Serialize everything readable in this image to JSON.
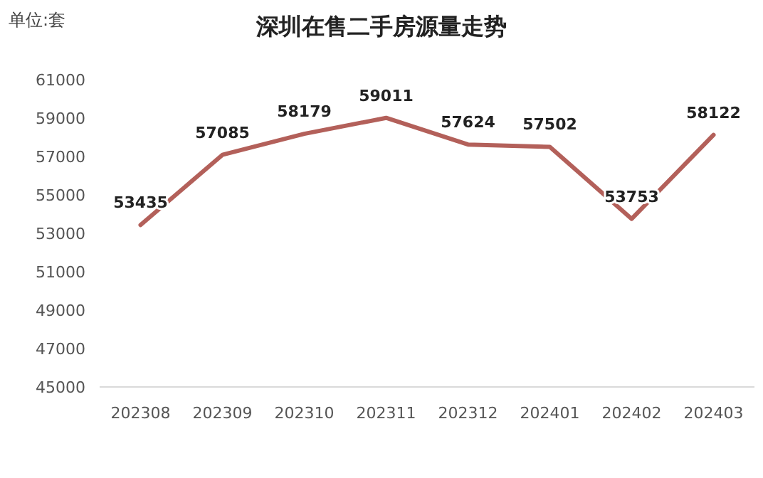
{
  "chart_data": {
    "type": "line",
    "title": "深圳在售二手房源量走势",
    "ylabel": "单位:套",
    "categories": [
      "202308",
      "202309",
      "202310",
      "202311",
      "202312",
      "202401",
      "202402",
      "202403"
    ],
    "values": [
      53435,
      57085,
      58179,
      59011,
      57624,
      57502,
      53753,
      58122
    ],
    "color": "#b3605a",
    "ylim": [
      45000,
      61000
    ],
    "yticks": [
      45000,
      47000,
      49000,
      51000,
      53000,
      55000,
      57000,
      59000,
      61000
    ],
    "data_labels": true,
    "marker": "none",
    "line_style": "solid"
  }
}
